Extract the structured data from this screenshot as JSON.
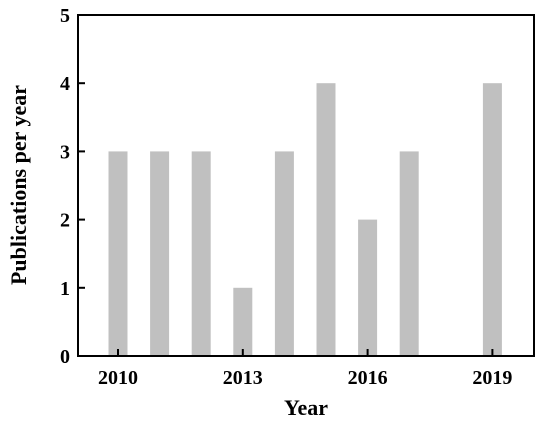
{
  "chart_data": {
    "type": "bar",
    "title": "",
    "xlabel": "Year",
    "ylabel": "Publications per year",
    "x": [
      2010,
      2011,
      2012,
      2013,
      2014,
      2015,
      2016,
      2017,
      2018,
      2019
    ],
    "values": [
      3,
      3,
      3,
      1,
      3,
      4,
      2,
      3,
      0,
      4
    ],
    "x_ticks": [
      "2010",
      "2013",
      "2016",
      "2019"
    ],
    "y_ticks": [
      "0",
      "1",
      "2",
      "3",
      "4",
      "5"
    ],
    "ylim": [
      0,
      5
    ],
    "grid": false,
    "legend": "none",
    "bar_color": "#c0c0c0",
    "axis_color": "#000000"
  }
}
